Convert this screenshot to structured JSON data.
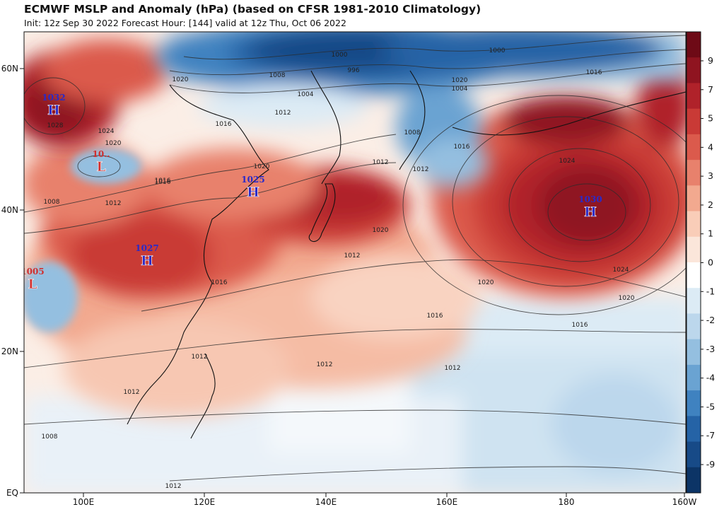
{
  "header": {
    "title": "ECMWF MSLP and Anomaly (hPa) (based on CFSR 1981-2010 Climatology)",
    "subtitle": "Init: 12z Sep 30 2022   Forecast Hour: [144]   valid at 12z Thu, Oct 06 2022"
  },
  "axes": {
    "lat_labels": [
      "60N",
      "40N",
      "20N",
      "EQ"
    ],
    "lon_labels": [
      "100E",
      "120E",
      "140E",
      "160E",
      "180",
      "160W"
    ]
  },
  "colorbar": {
    "labels": [
      "9",
      "7",
      "5",
      "4",
      "3",
      "2",
      "1",
      "0",
      "-1",
      "-2",
      "-3",
      "-4",
      "-5",
      "-7",
      "-9"
    ],
    "colors": [
      "#6e0a16",
      "#8f1420",
      "#b0222a",
      "#c93a36",
      "#db5a4c",
      "#e8816c",
      "#f2a98f",
      "#f9cdb8",
      "#fbe6da",
      "#ffffff",
      "#dcebf5",
      "#bcd7ec",
      "#94bfe0",
      "#6aa3d2",
      "#3f82c0",
      "#2563a6",
      "#174a87",
      "#0c3466"
    ]
  },
  "pressure_centers": [
    {
      "type": "H",
      "value": "1032",
      "color": "#2a2ac8"
    },
    {
      "type": "L",
      "value": "10..",
      "color": "#d03030"
    },
    {
      "type": "H",
      "value": "1025",
      "color": "#2a2ac8"
    },
    {
      "type": "H",
      "value": "1027",
      "color": "#2a2ac8"
    },
    {
      "type": "L",
      "value": "1005",
      "color": "#d03030"
    },
    {
      "type": "H",
      "value": "1030",
      "color": "#2a2ac8"
    }
  ],
  "isobar_labels": [
    "1000",
    "996",
    "1008",
    "1004",
    "1012",
    "1020",
    "1024",
    "1016",
    "1028",
    "1020",
    "1016",
    "1012",
    "1016",
    "1008",
    "1012",
    "1016",
    "1000",
    "1004",
    "1020",
    "1024",
    "1020",
    "1012",
    "1016",
    "1020",
    "1024",
    "1020",
    "1016",
    "1016",
    "1012",
    "1012",
    "1012",
    "1008",
    "1012",
    "1012",
    "1020",
    "1016",
    "1008",
    "1012"
  ]
}
